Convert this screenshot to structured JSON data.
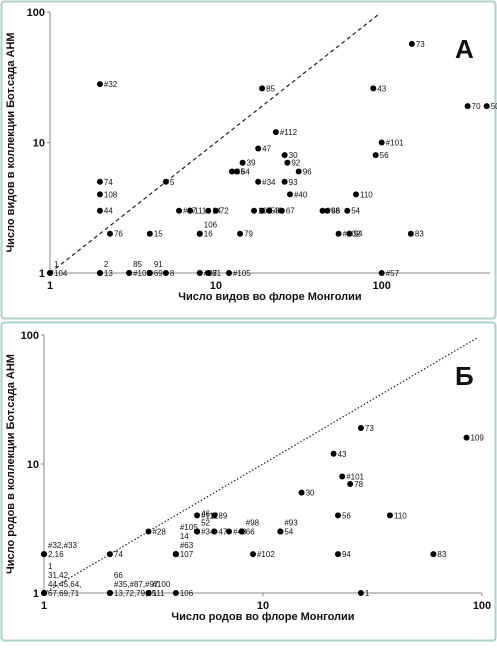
{
  "chart_data": [
    {
      "type": "scatter",
      "panel": "А",
      "x_label": "Число видов во флоре Монголии",
      "y_label": "Число видов в коллекции Бот.сада АНМ",
      "log_x": true,
      "log_y": true,
      "xlim": [
        1,
        450
      ],
      "ylim": [
        1,
        100
      ],
      "xticks": [
        1,
        10,
        100
      ],
      "yticks": [
        1,
        10,
        100
      ],
      "color": "#000000",
      "diagonal": "dashed",
      "point_labels": [
        "104",
        "1",
        "#32",
        "85",
        "73",
        "43",
        "70",
        "50",
        "#112",
        "#101",
        "56",
        "47",
        "30",
        "92",
        "39",
        "64",
        "45",
        "96",
        "74",
        "5",
        "#34",
        "93",
        "108",
        "#40",
        "110",
        "44",
        "#87",
        "111",
        "14",
        "72",
        "107",
        "#53",
        "46",
        "67",
        "#98",
        "66",
        "54",
        "#102",
        "94",
        "83",
        "76",
        "15",
        "16",
        "106",
        "79",
        "13",
        "2",
        "#100",
        "85",
        "69",
        "91",
        "8",
        "#97",
        "81",
        "#105",
        "#57"
      ],
      "x": [
        1,
        1,
        2,
        19,
        152,
        89,
        330,
        430,
        23,
        100,
        92,
        18,
        26,
        27,
        14.5,
        13.4,
        12.5,
        31.6,
        2,
        5,
        18,
        26,
        2,
        28,
        70,
        2,
        6,
        7,
        9,
        10,
        17,
        19,
        21,
        25,
        44,
        47,
        62,
        55,
        64,
        150,
        2.3,
        4,
        8,
        8,
        14,
        2,
        2,
        3,
        3,
        4,
        4,
        5,
        8,
        9,
        12,
        100
      ],
      "values": [
        1,
        1,
        28,
        26,
        57,
        26,
        19,
        19,
        12,
        10,
        8,
        9,
        8,
        7,
        7,
        6,
        6,
        6,
        5,
        5,
        5,
        5,
        4,
        4,
        4,
        3,
        3,
        3,
        3,
        3,
        3,
        3,
        3,
        3,
        3,
        3,
        3,
        2,
        2,
        2,
        2,
        2,
        2,
        2,
        2,
        1,
        1,
        1,
        1,
        1,
        1,
        1,
        1,
        1,
        1,
        1
      ]
    },
    {
      "type": "scatter",
      "panel": "Б",
      "x_label": "Число родов во флоре Монголии",
      "y_label": "Число родов в коллекции  Бот.сада АНМ",
      "log_x": true,
      "log_y": true,
      "xlim": [
        1,
        100
      ],
      "ylim": [
        1,
        100
      ],
      "xticks": [
        1,
        10,
        100
      ],
      "yticks": [
        1,
        10,
        100
      ],
      "color": "#000000",
      "diagonal": "dotted",
      "point_labels": [
        "73",
        "109",
        "43",
        "#101",
        "78",
        "30",
        "56",
        "110",
        "#112",
        "89",
        "#34",
        "52",
        "46",
        "47",
        "#40",
        "66",
        "#98",
        "54",
        "#93",
        "#28",
        "107",
        "#63",
        "14",
        "#105",
        "#102",
        "94",
        "83",
        "74",
        "2,16",
        "#32,#33",
        "67,69,71",
        "44,45,64,",
        "31,42",
        "13,72,79,85",
        "#35,#87,#97",
        "66",
        "1",
        "111",
        "#100",
        "106",
        "1"
      ],
      "x": [
        28,
        85,
        21,
        23,
        25,
        15,
        22,
        38,
        5,
        6,
        5,
        5,
        5,
        6,
        7,
        8,
        8,
        12,
        12,
        3,
        4,
        4,
        4,
        4,
        9,
        22,
        60,
        2,
        1,
        1,
        1,
        1,
        1,
        2,
        2,
        2,
        1,
        3,
        3,
        4,
        28
      ],
      "values": [
        19,
        16,
        12,
        8,
        7,
        6,
        4,
        4,
        4,
        4,
        3,
        3,
        3,
        3,
        3,
        3,
        3,
        3,
        3,
        3,
        2,
        2,
        2,
        2,
        2,
        2,
        2,
        2,
        2,
        2,
        1,
        1,
        1,
        1,
        1,
        1,
        1,
        1,
        1,
        1,
        1
      ]
    }
  ]
}
